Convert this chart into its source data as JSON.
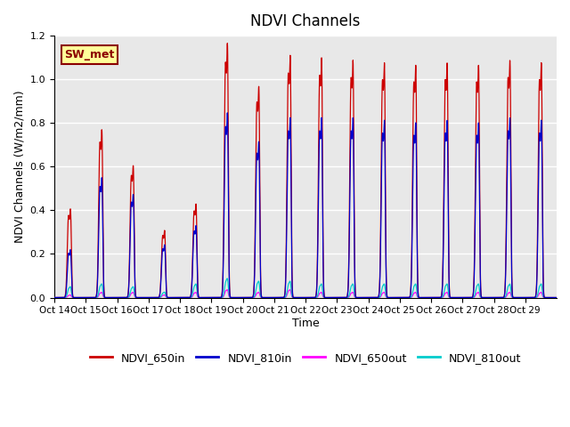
{
  "title": "NDVI Channels",
  "xlabel": "Time",
  "ylabel": "NDVI Channels (W/m2/mm)",
  "ylim": [
    0,
    1.2
  ],
  "bg_color": "#e8e8e8",
  "annotation_text": "SW_met",
  "annotation_bg": "#ffff99",
  "annotation_border": "#8b0000",
  "x_tick_labels": [
    "Oct 14",
    "Oct 15",
    "Oct 16",
    "Oct 17",
    "Oct 18",
    "Oct 19",
    "Oct 20",
    "Oct 21",
    "Oct 22",
    "Oct 23",
    "Oct 24",
    "Oct 25",
    "Oct 26",
    "Oct 27",
    "Oct 28",
    "Oct 29"
  ],
  "colors": {
    "NDVI_650in": "#cc0000",
    "NDVI_810in": "#0000cc",
    "NDVI_650out": "#ff00ff",
    "NDVI_810out": "#00cccc"
  },
  "n_days": 16,
  "daily_peaks_650in": [
    0.37,
    0.7,
    0.55,
    0.28,
    0.39,
    1.06,
    0.88,
    1.01,
    1.0,
    0.99,
    0.98,
    0.97,
    0.98,
    0.97,
    0.99,
    0.98
  ],
  "daily_peaks_810in": [
    0.2,
    0.5,
    0.43,
    0.22,
    0.3,
    0.77,
    0.65,
    0.75,
    0.75,
    0.75,
    0.74,
    0.73,
    0.74,
    0.73,
    0.75,
    0.74
  ],
  "daily_peaks_650out": [
    0.01,
    0.02,
    0.02,
    0.01,
    0.02,
    0.03,
    0.02,
    0.03,
    0.02,
    0.02,
    0.02,
    0.02,
    0.02,
    0.02,
    0.02,
    0.02
  ],
  "daily_peaks_810out": [
    0.04,
    0.05,
    0.04,
    0.02,
    0.05,
    0.07,
    0.06,
    0.06,
    0.05,
    0.05,
    0.05,
    0.05,
    0.05,
    0.05,
    0.05,
    0.05
  ]
}
